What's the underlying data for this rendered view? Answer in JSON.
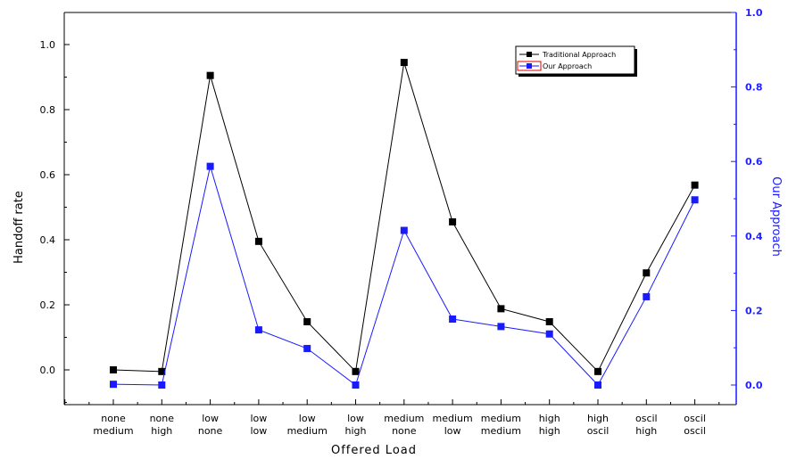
{
  "chart_data": {
    "type": "line",
    "categories": [
      [
        "none",
        "medium"
      ],
      [
        "none",
        "high"
      ],
      [
        "low",
        "none"
      ],
      [
        "low",
        "low"
      ],
      [
        "low",
        "medium"
      ],
      [
        "low",
        "high"
      ],
      [
        "medium",
        "none"
      ],
      [
        "medium",
        "low"
      ],
      [
        "medium",
        "medium"
      ],
      [
        "high",
        "high"
      ],
      [
        "high",
        "oscil"
      ],
      [
        "oscil",
        "high"
      ],
      [
        "oscil",
        "oscil"
      ]
    ],
    "xlabel": "Offered Load",
    "ylabel_left": "Handoff rate",
    "ylabel_right": "Our Approach",
    "ylim_left": [
      -0.1,
      1.1
    ],
    "ylim_right": [
      -0.05,
      1.0
    ],
    "yticks_left": [
      "0.0",
      "0.2",
      "0.4",
      "0.6",
      "0.8",
      "1.0"
    ],
    "yticks_right": [
      "0.0",
      "0.2",
      "0.4",
      "0.6",
      "0.8",
      "1.0"
    ],
    "series": [
      {
        "name": "Traditional Approach",
        "axis": "left",
        "color": "#000000",
        "values": [
          0.0,
          -0.005,
          0.905,
          0.395,
          0.148,
          -0.005,
          0.945,
          0.455,
          0.188,
          0.148,
          -0.005,
          0.298,
          0.568
        ]
      },
      {
        "name": "Our Approach",
        "axis": "right",
        "color": "#1a1aff",
        "values": [
          0.002,
          0.0,
          0.587,
          0.148,
          0.098,
          0.0,
          0.415,
          0.177,
          0.157,
          0.137,
          0.0,
          0.237,
          0.497
        ]
      }
    ],
    "legend_position": "top-right",
    "grid": false
  }
}
